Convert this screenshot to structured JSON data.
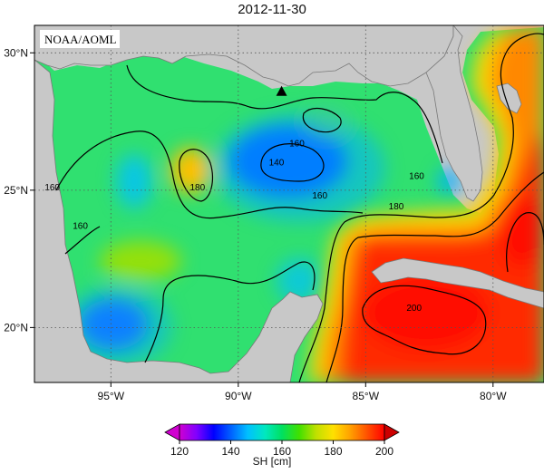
{
  "title": "2012-11-30",
  "source_label": "NOAA/AOML",
  "map": {
    "projection": "lat-lon",
    "lon_range": [
      -98,
      -78
    ],
    "lat_range": [
      18,
      31
    ],
    "x_ticks": [
      {
        "value": -95,
        "label": "95°W"
      },
      {
        "value": -90,
        "label": "90°W"
      },
      {
        "value": -85,
        "label": "85°W"
      },
      {
        "value": -80,
        "label": "80°W"
      }
    ],
    "y_ticks": [
      {
        "value": 30,
        "label": "30°N"
      },
      {
        "value": 25,
        "label": "25°N"
      },
      {
        "value": 20,
        "label": "20°N"
      }
    ],
    "grid": "dotted",
    "land_color": "#c8c8c8",
    "marker": {
      "type": "triangle",
      "lon": -88.3,
      "lat": 28.6,
      "color": "#000000"
    },
    "contour_labels": [
      {
        "text": "160",
        "lon": -97.3,
        "lat": 25.0
      },
      {
        "text": "160",
        "lon": -96.2,
        "lat": 23.6
      },
      {
        "text": "180",
        "lon": -91.6,
        "lat": 25.0
      },
      {
        "text": "140",
        "lon": -88.5,
        "lat": 25.9
      },
      {
        "text": "160",
        "lon": -87.7,
        "lat": 26.6
      },
      {
        "text": "160",
        "lon": -86.8,
        "lat": 24.7
      },
      {
        "text": "160",
        "lon": -83.0,
        "lat": 25.4
      },
      {
        "text": "180",
        "lon": -83.8,
        "lat": 24.3
      },
      {
        "text": "200",
        "lon": -83.1,
        "lat": 20.6
      }
    ]
  },
  "colorbar": {
    "label": "SH [cm]",
    "ticks": [
      "120",
      "140",
      "160",
      "180",
      "200"
    ],
    "range": [
      120,
      200
    ],
    "colors": [
      "#d000d0",
      "#8000ff",
      "#0000ff",
      "#0060ff",
      "#00c0ff",
      "#00e8c0",
      "#00e060",
      "#40e000",
      "#c0e000",
      "#ffe000",
      "#ffa000",
      "#ff5000",
      "#ff0000"
    ]
  }
}
